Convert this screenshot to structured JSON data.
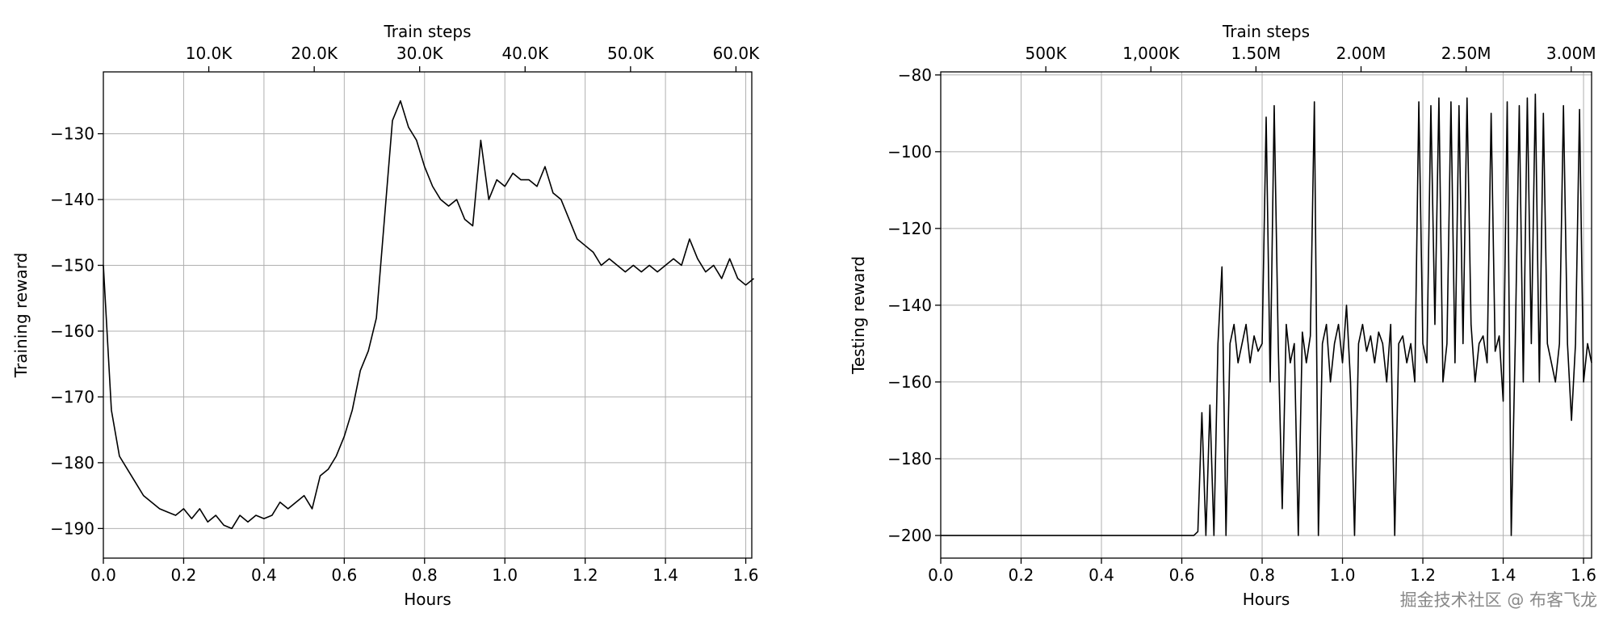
{
  "chart_data": [
    {
      "type": "line",
      "x_label": "Hours",
      "x2_label": "Train steps",
      "y_label": "Training reward",
      "grid": true,
      "xlim": [
        0,
        1.615
      ],
      "xticks": [
        {
          "value": 0,
          "label": "0.0"
        },
        0.2,
        0.4,
        0.6,
        0.8,
        {
          "value": 1,
          "label": "1.0"
        },
        1.2,
        1.4,
        1.6
      ],
      "x2lim": [
        0,
        61500
      ],
      "x2ticks": [
        {
          "value": 10000,
          "label": "10.0K"
        },
        {
          "value": 20000,
          "label": "20.0K"
        },
        {
          "value": 30000,
          "label": "30.0K"
        },
        {
          "value": 40000,
          "label": "40.0K"
        },
        {
          "value": 50000,
          "label": "50.0K"
        },
        {
          "value": 60000,
          "label": "60.0K"
        }
      ],
      "ylim": [
        -194.5,
        -120.6
      ],
      "yticks": [
        {
          "value": -190,
          "label": "−190"
        },
        {
          "value": -180,
          "label": "−180"
        },
        {
          "value": -170,
          "label": "−170"
        },
        {
          "value": -160,
          "label": "−160"
        },
        {
          "value": -150,
          "label": "−150"
        },
        {
          "value": -140,
          "label": "−140"
        },
        {
          "value": -130,
          "label": "−130"
        }
      ],
      "x": [
        0,
        0.02,
        0.04,
        0.06,
        0.08,
        0.1,
        0.12,
        0.14,
        0.16,
        0.18,
        0.2,
        0.22,
        0.24,
        0.26,
        0.28,
        0.3,
        0.32,
        0.34,
        0.36,
        0.38,
        0.4,
        0.42,
        0.44,
        0.46,
        0.48,
        0.5,
        0.52,
        0.54,
        0.56,
        0.58,
        0.6,
        0.62,
        0.64,
        0.66,
        0.68,
        0.7,
        0.72,
        0.74,
        0.76,
        0.78,
        0.8,
        0.82,
        0.84,
        0.86,
        0.88,
        0.9,
        0.92,
        0.94,
        0.96,
        0.98,
        1,
        1.02,
        1.04,
        1.06,
        1.08,
        1.1,
        1.12,
        1.14,
        1.16,
        1.18,
        1.2,
        1.22,
        1.24,
        1.26,
        1.28,
        1.3,
        1.32,
        1.34,
        1.36,
        1.38,
        1.4,
        1.42,
        1.44,
        1.46,
        1.48,
        1.5,
        1.52,
        1.54,
        1.56,
        1.58,
        1.6,
        1.62
      ],
      "series": [
        {
          "color": "#000000",
          "values": [
            -150,
            -172,
            -179,
            -181,
            -183,
            -185,
            -186,
            -187,
            -187.5,
            -188,
            -187,
            -188.5,
            -187,
            -189,
            -188,
            -189.5,
            -190,
            -188,
            -189,
            -188,
            -188.5,
            -188,
            -186,
            -187,
            -186,
            -185,
            -187,
            -182,
            -181,
            -179,
            -176,
            -172,
            -166,
            -163,
            -158,
            -143,
            -128,
            -125,
            -129,
            -131,
            -135,
            -138,
            -140,
            -141,
            -140,
            -143,
            -144,
            -131,
            -140,
            -137,
            -138,
            -136,
            -137,
            -137,
            -138,
            -135,
            -139,
            -140,
            -143,
            -146,
            -147,
            -148,
            -150,
            -149,
            -150,
            -151,
            -150,
            -151,
            -150,
            -151,
            -150,
            -149,
            -150,
            -146,
            -149,
            -151,
            -150,
            -152,
            -149,
            -152,
            -153,
            -152
          ]
        }
      ]
    },
    {
      "type": "line",
      "x_label": "Hours",
      "x2_label": "Train steps",
      "y_label": "Testing reward",
      "grid": true,
      "xlim": [
        0,
        1.62
      ],
      "xticks": [
        {
          "value": 0,
          "label": "0.0"
        },
        0.2,
        0.4,
        0.6,
        0.8,
        {
          "value": 1,
          "label": "1.0"
        },
        1.2,
        1.4,
        1.6
      ],
      "x2lim": [
        0,
        3097000
      ],
      "x2ticks": [
        {
          "value": 500000,
          "label": "500K"
        },
        {
          "value": 1000000,
          "label": "1,000K"
        },
        {
          "value": 1500000,
          "label": "1.50M"
        },
        {
          "value": 2000000,
          "label": "2.00M"
        },
        {
          "value": 2500000,
          "label": "2.50M"
        },
        {
          "value": 3000000,
          "label": "3.00M"
        }
      ],
      "ylim": [
        -205.9,
        -79.2
      ],
      "yticks": [
        {
          "value": -200,
          "label": "−200"
        },
        {
          "value": -180,
          "label": "−180"
        },
        {
          "value": -160,
          "label": "−160"
        },
        {
          "value": -140,
          "label": "−140"
        },
        {
          "value": -120,
          "label": "−120"
        },
        {
          "value": -100,
          "label": "−100"
        },
        {
          "value": -80,
          "label": "−80"
        }
      ],
      "x": [
        0,
        0.6,
        0.63,
        0.64,
        0.65,
        0.66,
        0.67,
        0.68,
        0.69,
        0.7,
        0.71,
        0.72,
        0.73,
        0.74,
        0.75,
        0.76,
        0.77,
        0.78,
        0.79,
        0.8,
        0.81,
        0.82,
        0.83,
        0.84,
        0.85,
        0.86,
        0.87,
        0.88,
        0.89,
        0.9,
        0.91,
        0.92,
        0.93,
        0.94,
        0.95,
        0.96,
        0.97,
        0.98,
        0.99,
        1,
        1.01,
        1.02,
        1.03,
        1.04,
        1.05,
        1.06,
        1.07,
        1.08,
        1.09,
        1.1,
        1.11,
        1.12,
        1.13,
        1.14,
        1.15,
        1.16,
        1.17,
        1.18,
        1.19,
        1.2,
        1.21,
        1.22,
        1.23,
        1.24,
        1.25,
        1.26,
        1.27,
        1.28,
        1.29,
        1.3,
        1.31,
        1.32,
        1.33,
        1.34,
        1.35,
        1.36,
        1.37,
        1.38,
        1.39,
        1.4,
        1.41,
        1.42,
        1.43,
        1.44,
        1.45,
        1.46,
        1.47,
        1.48,
        1.49,
        1.5,
        1.51,
        1.52,
        1.53,
        1.54,
        1.55,
        1.56,
        1.57,
        1.58,
        1.59,
        1.6,
        1.61,
        1.62
      ],
      "series": [
        {
          "color": "#000000",
          "values": [
            -200,
            -200,
            -200,
            -199,
            -168,
            -200,
            -166,
            -200,
            -150,
            -130,
            -200,
            -150,
            -145,
            -155,
            -150,
            -145,
            -155,
            -148,
            -152,
            -150,
            -91,
            -160,
            -88,
            -150,
            -193,
            -145,
            -155,
            -150,
            -200,
            -147,
            -155,
            -148,
            -87,
            -200,
            -150,
            -145,
            -160,
            -150,
            -145,
            -155,
            -140,
            -160,
            -200,
            -150,
            -145,
            -152,
            -148,
            -155,
            -147,
            -150,
            -160,
            -145,
            -200,
            -150,
            -148,
            -155,
            -150,
            -160,
            -87,
            -150,
            -155,
            -88,
            -145,
            -86,
            -160,
            -150,
            -87,
            -155,
            -88,
            -150,
            -86,
            -145,
            -160,
            -150,
            -148,
            -155,
            -90,
            -152,
            -148,
            -165,
            -87,
            -200,
            -150,
            -88,
            -160,
            -86,
            -150,
            -85,
            -160,
            -90,
            -150,
            -155,
            -160,
            -150,
            -88,
            -150,
            -170,
            -150,
            -89,
            -160,
            -150,
            -155
          ]
        }
      ]
    }
  ],
  "watermark": "掘金技术社区 @ 布客飞龙"
}
